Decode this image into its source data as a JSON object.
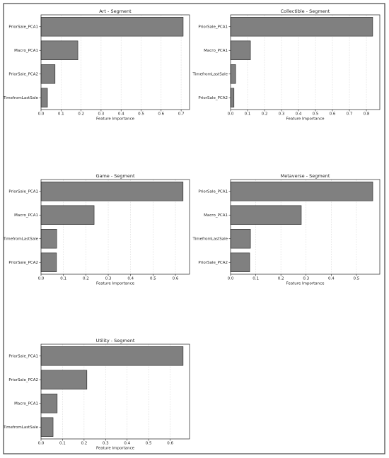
{
  "chart_data": [
    {
      "type": "bar",
      "orientation": "horizontal",
      "title": "Art - Segment",
      "xlabel": "Feature Importance",
      "categories": [
        "PriorSale_PCA1",
        "Macro_PCA1",
        "PriorSale_PCA2",
        "TimefromLastSale"
      ],
      "values": [
        0.71,
        0.184,
        0.07,
        0.032
      ],
      "color": "#808080",
      "grid": true,
      "xlim": [
        0,
        0.742
      ],
      "xticks": [
        {
          "value": 0,
          "label": "0.0"
        },
        {
          "value": 0.1,
          "label": "0.1"
        },
        {
          "value": 0.2,
          "label": "0.2"
        },
        {
          "value": 0.3,
          "label": "0.3"
        },
        {
          "value": 0.4,
          "label": "0.4"
        },
        {
          "value": 0.5,
          "label": "0.5"
        },
        {
          "value": 0.6,
          "label": "0.6"
        },
        {
          "value": 0.7,
          "label": "0.7"
        }
      ]
    },
    {
      "type": "bar",
      "orientation": "horizontal",
      "title": "Collectible - Segment",
      "xlabel": "Feature Importance",
      "categories": [
        "PriorSale_PCA1",
        "Macro_PCA1",
        "TimefromLastSale",
        "PriorSale_PCA2"
      ],
      "values": [
        0.837,
        0.117,
        0.03,
        0.02
      ],
      "color": "#808080",
      "grid": true,
      "xlim": [
        0,
        0.879
      ],
      "xticks": [
        {
          "value": 0,
          "label": "0.0"
        },
        {
          "value": 0.1,
          "label": "0.1"
        },
        {
          "value": 0.2,
          "label": "0.2"
        },
        {
          "value": 0.3,
          "label": "0.3"
        },
        {
          "value": 0.4,
          "label": "0.4"
        },
        {
          "value": 0.5,
          "label": "0.5"
        },
        {
          "value": 0.6,
          "label": "0.6"
        },
        {
          "value": 0.7,
          "label": "0.7"
        },
        {
          "value": 0.8,
          "label": "0.8"
        }
      ]
    },
    {
      "type": "bar",
      "orientation": "horizontal",
      "title": "Game - Segment",
      "xlabel": "Feature Importance",
      "categories": [
        "PriorSale_PCA1",
        "Macro_PCA1",
        "TimefromLastSale",
        "PriorSale_PCA2"
      ],
      "values": [
        0.634,
        0.237,
        0.07,
        0.069
      ],
      "color": "#808080",
      "grid": true,
      "xlim": [
        0,
        0.663
      ],
      "xticks": [
        {
          "value": 0,
          "label": "0.0"
        },
        {
          "value": 0.1,
          "label": "0.1"
        },
        {
          "value": 0.2,
          "label": "0.2"
        },
        {
          "value": 0.3,
          "label": "0.3"
        },
        {
          "value": 0.4,
          "label": "0.4"
        },
        {
          "value": 0.5,
          "label": "0.5"
        },
        {
          "value": 0.6,
          "label": "0.6"
        }
      ]
    },
    {
      "type": "bar",
      "orientation": "horizontal",
      "title": "Metaverse - Segment",
      "xlabel": "Feature Importance",
      "categories": [
        "PriorSale_PCA1",
        "Macro_PCA1",
        "TimefromLastSale",
        "PriorSale_PCA2"
      ],
      "values": [
        0.565,
        0.281,
        0.079,
        0.076
      ],
      "color": "#808080",
      "grid": true,
      "xlim": [
        0,
        0.593
      ],
      "xticks": [
        {
          "value": 0,
          "label": "0.0"
        },
        {
          "value": 0.1,
          "label": "0.1"
        },
        {
          "value": 0.2,
          "label": "0.2"
        },
        {
          "value": 0.3,
          "label": "0.3"
        },
        {
          "value": 0.4,
          "label": "0.4"
        },
        {
          "value": 0.5,
          "label": "0.5"
        }
      ]
    },
    {
      "type": "bar",
      "orientation": "horizontal",
      "title": "Utility - Segment",
      "xlabel": "Feature Importance",
      "categories": [
        "PriorSale_PCA1",
        "PriorSale_PCA2",
        "Macro_PCA1",
        "TimefromLastSale"
      ],
      "values": [
        0.66,
        0.213,
        0.075,
        0.056
      ],
      "color": "#808080",
      "grid": true,
      "xlim": [
        0,
        0.69
      ],
      "xticks": [
        {
          "value": 0,
          "label": "0.0"
        },
        {
          "value": 0.1,
          "label": "0.1"
        },
        {
          "value": 0.2,
          "label": "0.2"
        },
        {
          "value": 0.3,
          "label": "0.3"
        },
        {
          "value": 0.4,
          "label": "0.4"
        },
        {
          "value": 0.5,
          "label": "0.5"
        },
        {
          "value": 0.6,
          "label": "0.6"
        }
      ]
    }
  ]
}
